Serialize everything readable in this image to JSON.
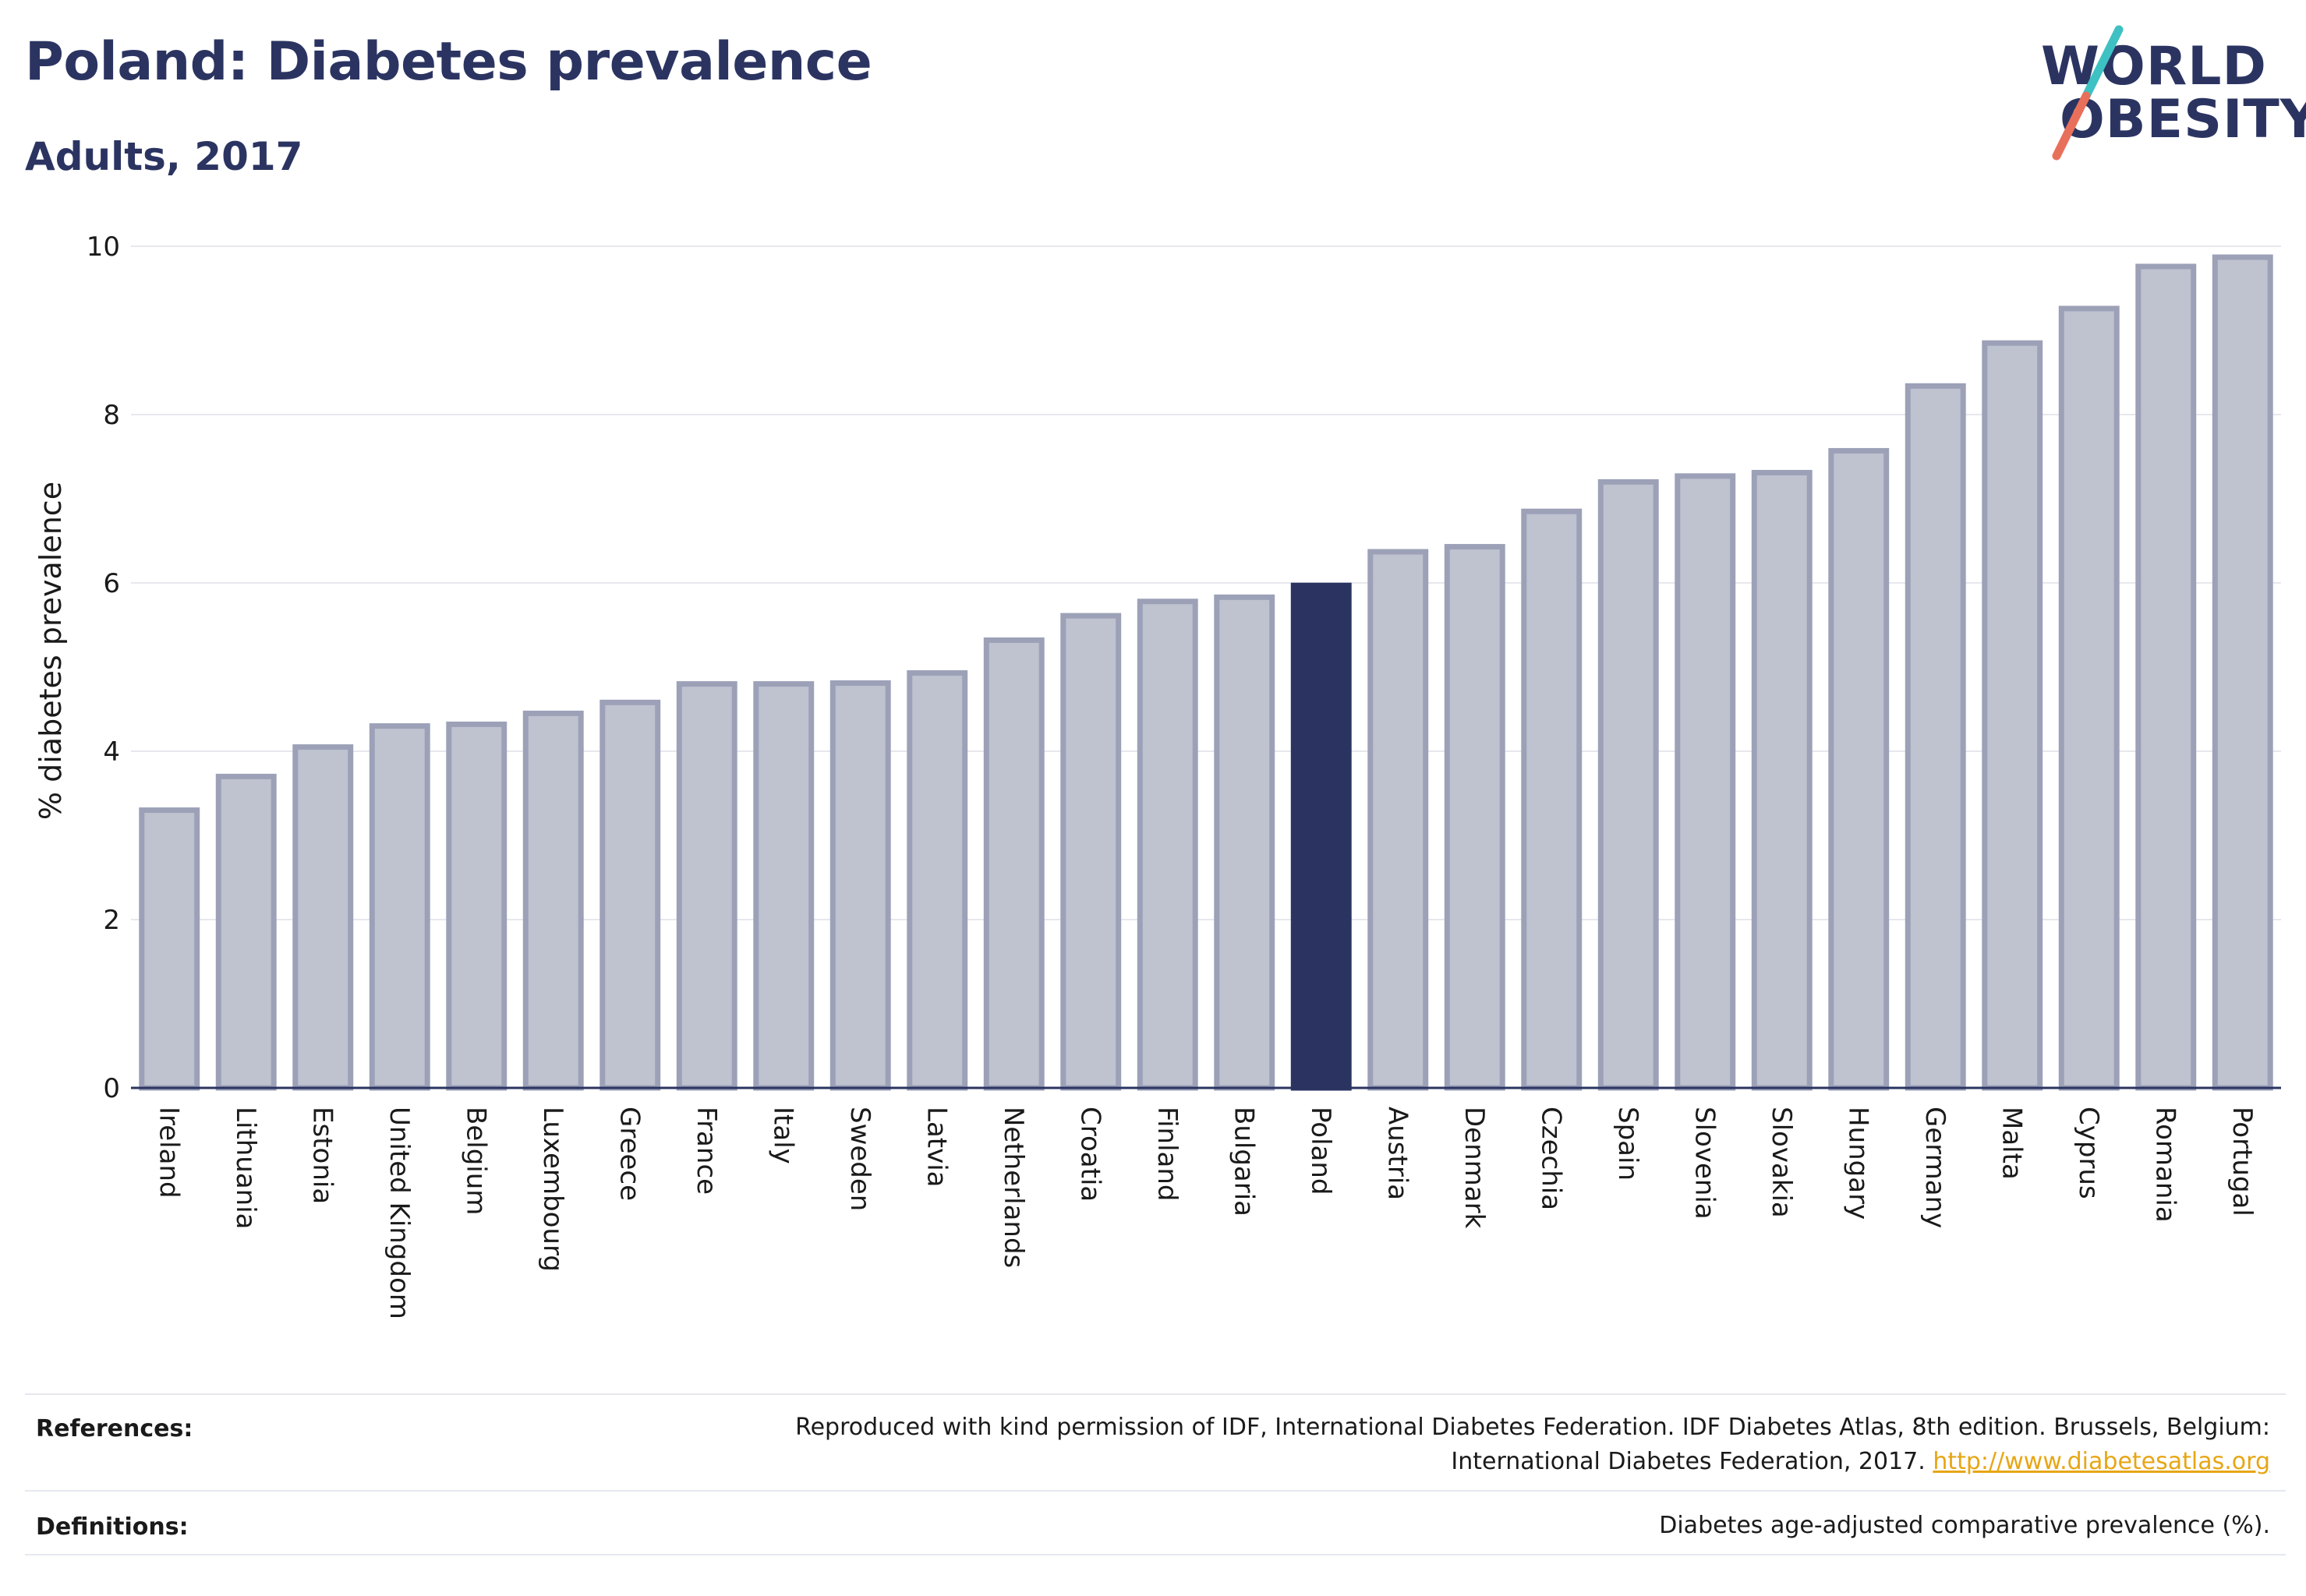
{
  "header": {
    "title": "Poland: Diabetes prevalence",
    "subtitle": "Adults, 2017"
  },
  "logo": {
    "line1": "WORLD",
    "line2": "OBESITY",
    "colors": {
      "text": "#2b3461",
      "slash_top": "#3ec1c3",
      "slash_bottom": "#e8705a"
    }
  },
  "chart_data": {
    "type": "bar",
    "ylabel": "% diabetes prevalence",
    "xlabel": "",
    "ylim": [
      0,
      10
    ],
    "yticks": [
      0,
      2,
      4,
      6,
      8,
      10
    ],
    "grid": true,
    "highlight": "Poland",
    "colors": {
      "bar": "#bfc2cf",
      "bar_edge": "#9ca1b8",
      "highlight": "#2b3461"
    },
    "categories": [
      "Ireland",
      "Lithuania",
      "Estonia",
      "United Kingdom",
      "Belgium",
      "Luxembourg",
      "Greece",
      "France",
      "Italy",
      "Sweden",
      "Latvia",
      "Netherlands",
      "Croatia",
      "Finland",
      "Bulgaria",
      "Poland",
      "Austria",
      "Denmark",
      "Czechia",
      "Spain",
      "Slovenia",
      "Slovakia",
      "Hungary",
      "Germany",
      "Malta",
      "Cyprus",
      "Romania",
      "Portugal"
    ],
    "values": [
      3.3,
      3.7,
      4.05,
      4.3,
      4.32,
      4.45,
      4.58,
      4.8,
      4.8,
      4.81,
      4.93,
      5.32,
      5.61,
      5.78,
      5.83,
      5.97,
      6.37,
      6.43,
      6.85,
      7.2,
      7.27,
      7.31,
      7.57,
      8.34,
      8.85,
      9.26,
      9.76,
      9.87
    ]
  },
  "footer": {
    "references_label": "References:",
    "references_text_line1": "Reproduced with kind permission of IDF, International Diabetes Federation. IDF Diabetes Atlas, 8th edition. Brussels, Belgium:",
    "references_text_line2": "International Diabetes Federation, 2017.",
    "references_link": "http://www.diabetesatlas.org",
    "definitions_label": "Definitions:",
    "definitions_text": "Diabetes age-adjusted comparative prevalence (%)."
  }
}
